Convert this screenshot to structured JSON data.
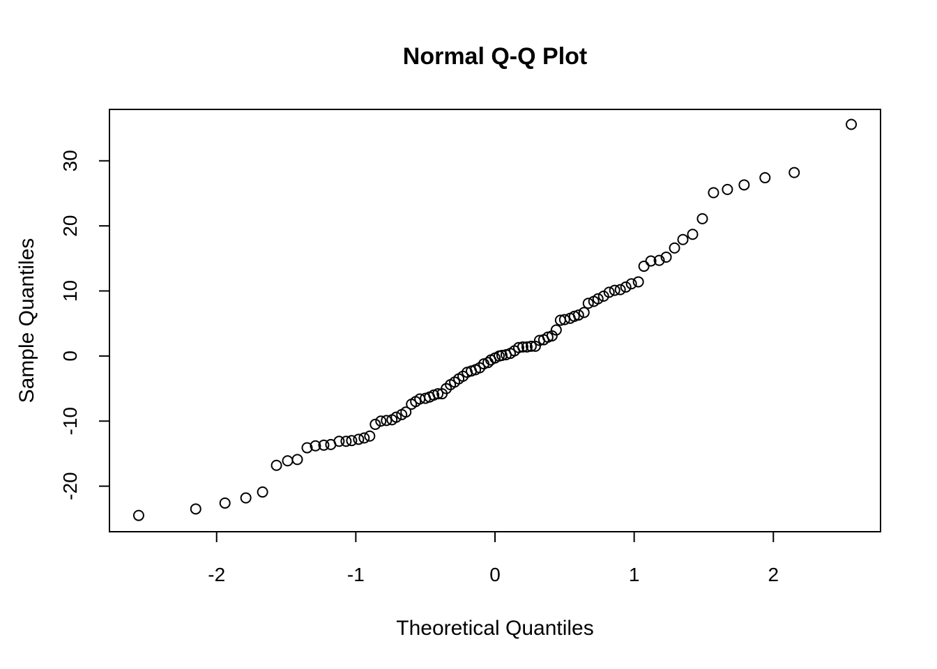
{
  "chart_data": {
    "type": "scatter",
    "title": "Normal Q-Q Plot",
    "xlabel": "Theoretical Quantiles",
    "ylabel": "Sample Quantiles",
    "xlim": [
      -2.77,
      2.77
    ],
    "ylim": [
      -27.0,
      37.9
    ],
    "x_ticks": [
      -2,
      -1,
      0,
      1,
      2
    ],
    "x_tick_labels": [
      "-2",
      "-1",
      "0",
      "1",
      "2"
    ],
    "y_ticks": [
      -20,
      -10,
      0,
      10,
      20,
      30
    ],
    "y_tick_labels": [
      "-20",
      "-10",
      "0",
      "10",
      "20",
      "30"
    ],
    "grid": false,
    "legend": "none",
    "marker": "open-circle",
    "series": [
      {
        "x": [
          -2.56,
          -2.15,
          -1.94,
          -1.79,
          -1.67,
          -1.57,
          -1.49,
          -1.42,
          -1.35,
          -1.29,
          -1.23,
          -1.18,
          -1.12,
          -1.07,
          -1.03,
          -0.98,
          -0.94,
          -0.9,
          -0.86,
          -0.82,
          -0.78,
          -0.74,
          -0.71,
          -0.67,
          -0.64,
          -0.6,
          -0.57,
          -0.54,
          -0.5,
          -0.47,
          -0.44,
          -0.41,
          -0.38,
          -0.35,
          -0.32,
          -0.29,
          -0.26,
          -0.23,
          -0.2,
          -0.17,
          -0.14,
          -0.11,
          -0.08,
          -0.05,
          -0.03,
          0.0,
          0.03,
          0.05,
          0.08,
          0.11,
          0.14,
          0.17,
          0.2,
          0.23,
          0.26,
          0.29,
          0.32,
          0.35,
          0.38,
          0.41,
          0.44,
          0.47,
          0.5,
          0.54,
          0.57,
          0.6,
          0.64,
          0.67,
          0.71,
          0.74,
          0.78,
          0.82,
          0.86,
          0.9,
          0.94,
          0.98,
          1.03,
          1.07,
          1.12,
          1.18,
          1.23,
          1.29,
          1.35,
          1.42,
          1.49,
          1.57,
          1.67,
          1.79,
          1.94,
          2.15,
          2.56
        ],
        "y": [
          -24.5,
          -23.5,
          -22.6,
          -21.8,
          -20.9,
          -16.8,
          -16.1,
          -15.9,
          -14.1,
          -13.8,
          -13.7,
          -13.6,
          -13.1,
          -13.1,
          -13.0,
          -12.8,
          -12.6,
          -12.3,
          -10.5,
          -10.0,
          -9.9,
          -9.8,
          -9.4,
          -9.0,
          -8.6,
          -7.4,
          -7.0,
          -6.6,
          -6.5,
          -6.3,
          -6.0,
          -5.8,
          -5.8,
          -5.0,
          -4.4,
          -4.0,
          -3.5,
          -3.1,
          -2.5,
          -2.3,
          -2.1,
          -1.8,
          -1.2,
          -1.0,
          -0.6,
          -0.3,
          0.0,
          0.1,
          0.2,
          0.4,
          0.8,
          1.3,
          1.4,
          1.4,
          1.5,
          1.5,
          2.4,
          2.5,
          2.9,
          3.1,
          4.0,
          5.5,
          5.6,
          5.8,
          6.1,
          6.3,
          6.7,
          8.1,
          8.4,
          8.8,
          9.2,
          9.8,
          10.1,
          10.2,
          10.6,
          11.1,
          11.4,
          13.8,
          14.6,
          14.7,
          15.2,
          16.6,
          17.9,
          18.7,
          21.1,
          25.1,
          25.6,
          26.3,
          27.4,
          28.2,
          35.6
        ]
      }
    ]
  }
}
